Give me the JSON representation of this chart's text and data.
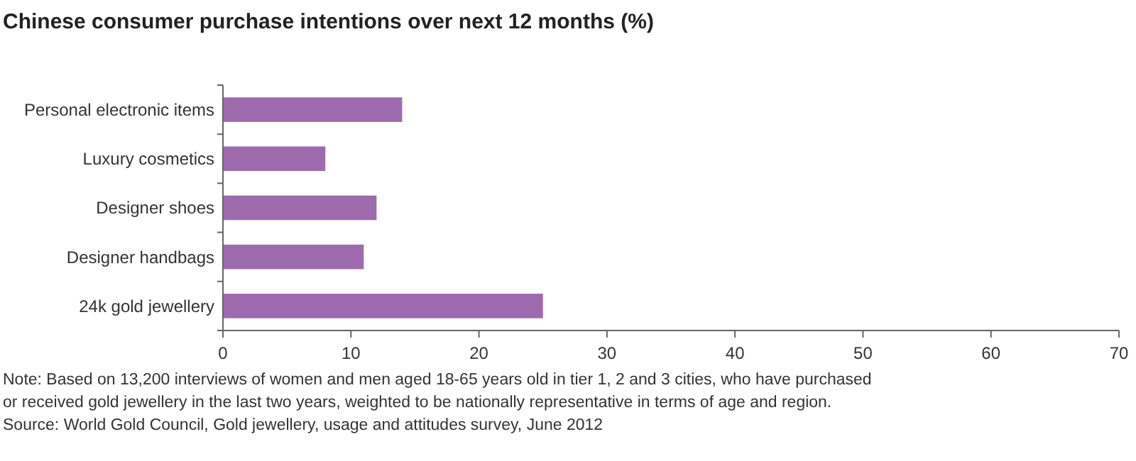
{
  "chart_data": {
    "type": "bar",
    "orientation": "horizontal",
    "title": "Chinese consumer purchase intentions over next 12 months (%)",
    "categories": [
      "Personal electronic items",
      "Luxury cosmetics",
      "Designer shoes",
      "Designer handbags",
      "24k gold jewellery"
    ],
    "values": [
      14,
      8,
      12,
      11,
      25
    ],
    "color": "#9e6aae",
    "xlim": [
      0,
      70
    ],
    "xticks": [
      0,
      10,
      20,
      30,
      40,
      50,
      60,
      70
    ],
    "grid": false,
    "annotations": [
      "Note: Based on 13,200 interviews of women and men aged 18-65 years old in tier 1, 2 and 3 cities, who have purchased",
      "or received gold jewellery in the last two years, weighted to be nationally representative in terms of age and region.",
      "Source: World Gold Council, Gold jewellery, usage and attitudes survey, June 2012"
    ]
  }
}
